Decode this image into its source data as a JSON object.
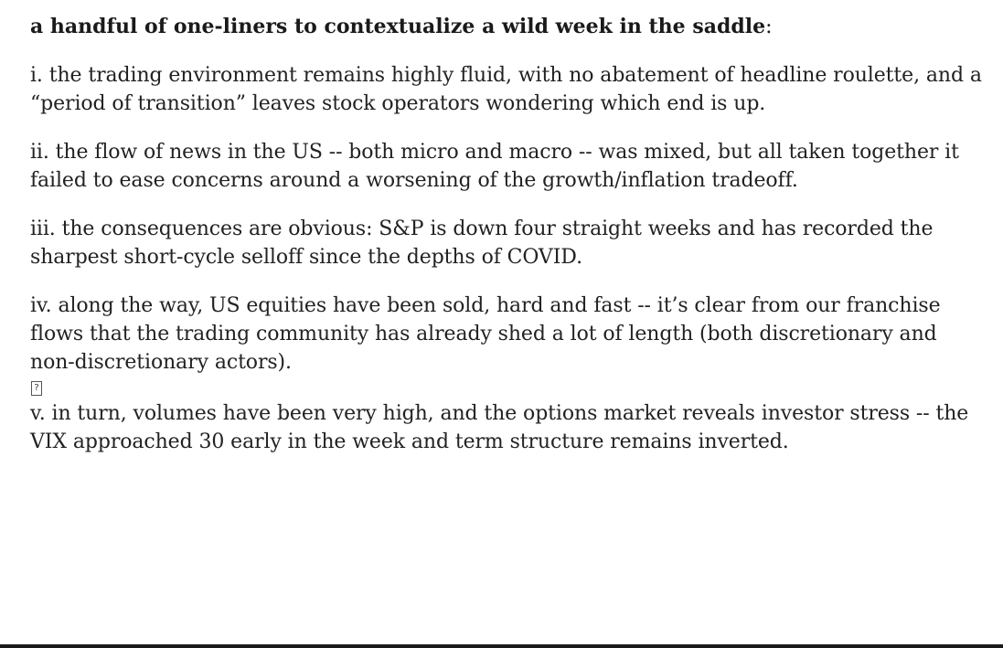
{
  "document": {
    "heading": {
      "bold_text": "a handful of one-liners to contextualize a wild week in the saddle",
      "trailing": ":"
    },
    "paragraphs": [
      "i. the trading environment remains highly fluid, with no abatement of headline roulette, and a “period of transition” leaves stock operators wondering which end is up.",
      "ii. the flow of news in the US -- both micro and macro -- was mixed, but all taken together it failed to ease concerns around a worsening of the growth/inflation tradeoff.",
      "iii. the consequences are obvious: S&P is down four straight weeks and has recorded the sharpest short-cycle selloff since the depths of COVID.",
      "iv. along the way, US equities have been sold, hard and fast -- it’s clear from our franchise flows that the trading community has already shed a lot of length (both discretionary and non-discretionary actors).",
      "v. in turn, volumes have been very high, and the options market reveals investor stress -- the VIX approached 30 early in the week and term structure remains inverted."
    ],
    "missing_glyph": "?"
  }
}
